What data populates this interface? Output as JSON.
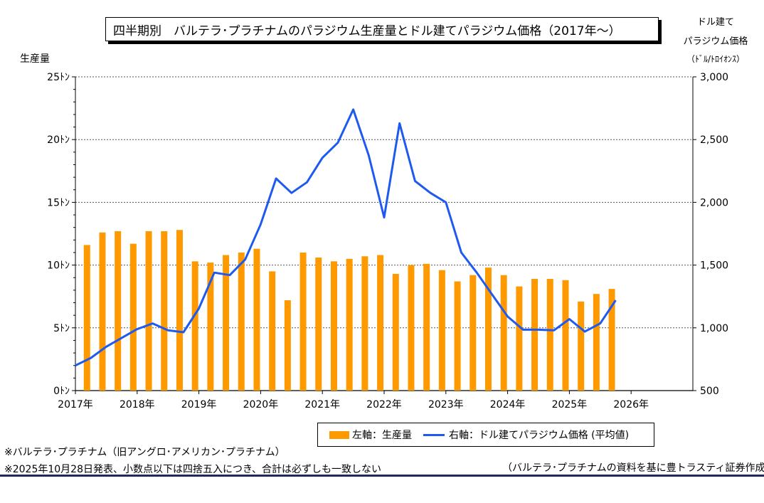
{
  "title": "四半期別　バルテラ･プラチナムのパラジウム生産量とドル建てパラジウム価格（2017年～）",
  "left_axis_header": "生産量",
  "right_axis_header": [
    "ドル建て",
    "パラジウム価格",
    "（ﾄﾞﾙ/ﾄﾛｲｵﾝｽ）"
  ],
  "legend": {
    "bar_label": "左軸：生産量",
    "line_label": "右軸：ドル建てパラジウム価格 (平均値)"
  },
  "notes": [
    "※バルテラ･プラチナム（旧アングロ･アメリカン･プラチナム）",
    "※2025年10月28日発表、小数点以下は四捨五入につき、合計は必ずしも一致しない"
  ],
  "source": "（バルテラ･プラチナムの資料を基に豊トラスティ証券作成）",
  "colors": {
    "bar": "#FF9900",
    "line": "#1E5AF0",
    "footer": "#1F2A5C"
  },
  "chart_data": {
    "type": "bar+line",
    "title": "四半期別　バルテラ･プラチナムのパラジウム生産量とドル建てパラジウム価格（2017年～）",
    "x_tick_labels": [
      "2017年",
      "2018年",
      "2019年",
      "2020年",
      "2021年",
      "2022年",
      "2023年",
      "2024年",
      "2025年",
      "2026年"
    ],
    "left_axis": {
      "label": "生産量",
      "unit": "ﾄﾝ",
      "range": [
        0,
        25
      ],
      "ticks": [
        "0ﾄﾝ",
        "5ﾄﾝ",
        "10ﾄﾝ",
        "15ﾄﾝ",
        "20ﾄﾝ",
        "25ﾄﾝ"
      ]
    },
    "right_axis": {
      "label": "ドル建てパラジウム価格",
      "unit": "ﾄﾞﾙ/ﾄﾛｲｵﾝｽ",
      "range": [
        500,
        3000
      ],
      "ticks": [
        "500",
        "1,000",
        "1,500",
        "2,000",
        "2,500",
        "3,000"
      ]
    },
    "series": [
      {
        "name": "左軸：生産量",
        "type": "bar",
        "axis": "left",
        "values": [
          11.6,
          12.6,
          12.7,
          11.7,
          12.7,
          12.7,
          12.8,
          10.3,
          10.2,
          10.8,
          11.0,
          11.3,
          9.5,
          7.2,
          11.0,
          10.6,
          10.3,
          10.5,
          10.7,
          10.8,
          9.3,
          10.0,
          10.1,
          9.6,
          8.7,
          9.2,
          9.8,
          9.2,
          8.3,
          8.9,
          8.9,
          8.8,
          7.1,
          7.7,
          8.1
        ]
      },
      {
        "name": "右軸：ドル建てパラジウム価格 (平均値)",
        "type": "line",
        "axis": "right",
        "values": [
          700,
          760,
          850,
          920,
          990,
          1035,
          980,
          965,
          1155,
          1440,
          1420,
          1545,
          1825,
          2190,
          2075,
          2160,
          2355,
          2475,
          2740,
          2375,
          1880,
          2630,
          2170,
          2075,
          2000,
          1600,
          1440,
          1265,
          1090,
          985,
          985,
          980,
          1070,
          970,
          1035,
          1220
        ]
      }
    ],
    "grid": true
  }
}
